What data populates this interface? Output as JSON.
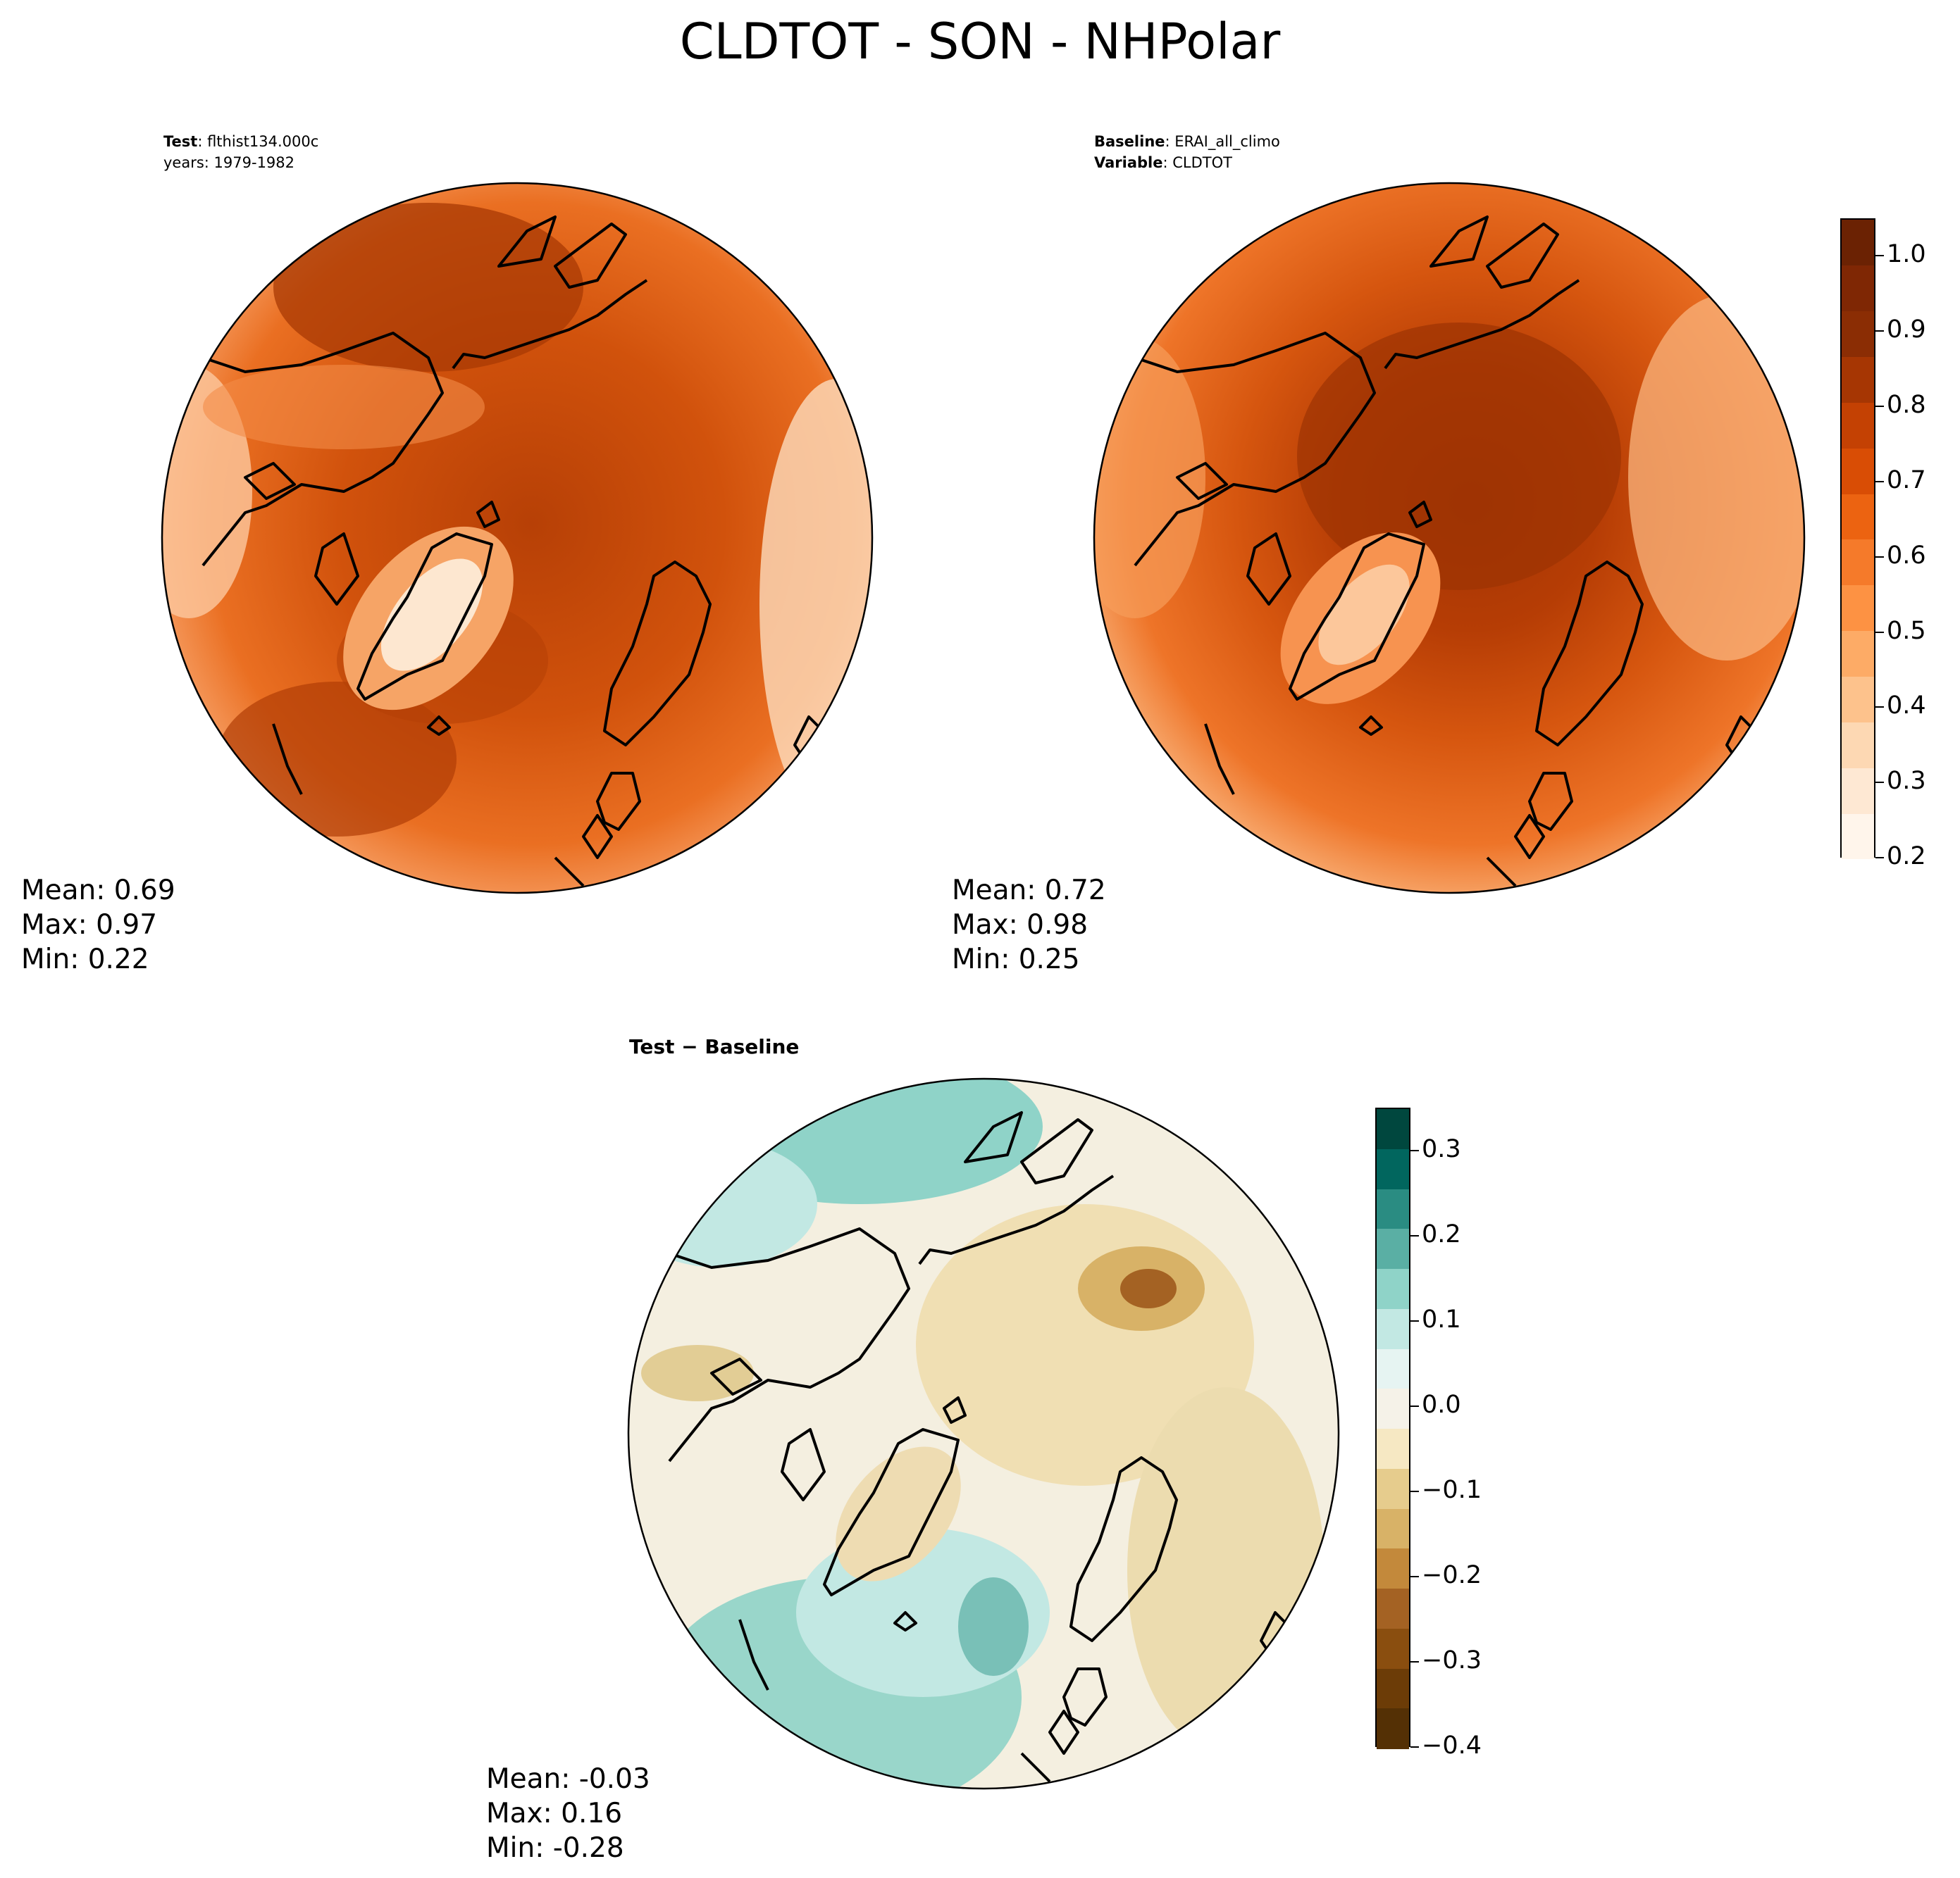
{
  "figure": {
    "title": "CLDTOT - SON - NHPolar"
  },
  "panels": {
    "test": {
      "label_key": "Test",
      "label_value": ": flthist134.000c",
      "years": "years: 1979-1982",
      "stats": {
        "mean": "Mean:  0.69",
        "max": "Max:  0.97",
        "min": "Min:  0.22"
      },
      "fill": "#c94a0c"
    },
    "baseline": {
      "label_key": "Baseline",
      "label_value": ": ERAI_all_climo",
      "variable_key": "Variable",
      "variable_value": ": CLDTOT",
      "stats": {
        "mean": "Mean:  0.72",
        "max": "Max:  0.98",
        "min": "Min:  0.25"
      },
      "fill": "#d0540f"
    },
    "difference": {
      "title": "Test − Baseline",
      "stats": {
        "mean": "Mean: -0.03",
        "max": "Max:  0.16",
        "min": "Min: -0.28"
      },
      "fill": "#f3ead4"
    }
  },
  "colorbars": {
    "main": {
      "colormap": "Oranges",
      "ticks": [
        "0.2",
        "0.3",
        "0.4",
        "0.5",
        "0.6",
        "0.7",
        "0.8",
        "0.9",
        "1.0"
      ],
      "range": [
        0.2,
        1.05
      ],
      "colors": [
        "#fff5eb",
        "#fee8d3",
        "#fdd8b3",
        "#fdc28c",
        "#fdab66",
        "#fd9243",
        "#f57a2a",
        "#ec6311",
        "#d94d05",
        "#c44103",
        "#a63603",
        "#8b2d04",
        "#7f2704",
        "#6b2203"
      ]
    },
    "diff": {
      "colormap": "BrBG",
      "ticks": [
        "0.3",
        "0.2",
        "0.1",
        "0.0",
        "−0.1",
        "−0.2",
        "−0.3",
        "−0.4"
      ],
      "range": [
        -0.4,
        0.35
      ],
      "colors": [
        "#00473e",
        "#01665e",
        "#2a8c82",
        "#5aafa4",
        "#8fd3c8",
        "#c2e8e3",
        "#e6f4f2",
        "#f5f2e8",
        "#f6e8c3",
        "#e6cc8d",
        "#d8b267",
        "#c3893b",
        "#a46223",
        "#8a4e0f",
        "#6c3c07",
        "#543005"
      ]
    }
  }
}
